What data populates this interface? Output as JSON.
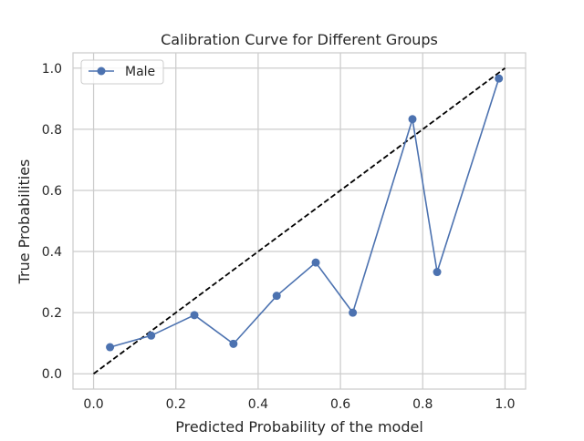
{
  "chart_data": {
    "type": "line",
    "title": "Calibration Curve for Different Groups",
    "xlabel": "Predicted Probability of the model",
    "ylabel": "True Probabilities",
    "xlim": [
      -0.05,
      1.05
    ],
    "ylim": [
      -0.05,
      1.05
    ],
    "xticks": [
      "0.0",
      "0.2",
      "0.4",
      "0.6",
      "0.8",
      "1.0"
    ],
    "yticks": [
      "0.0",
      "0.2",
      "0.4",
      "0.6",
      "0.8",
      "1.0"
    ],
    "grid": true,
    "legend_position": "upper left",
    "series": [
      {
        "name": "Male",
        "color": "#4c72b0",
        "marker": "circle",
        "x": [
          0.04,
          0.14,
          0.245,
          0.34,
          0.445,
          0.54,
          0.63,
          0.775,
          0.835,
          0.985
        ],
        "y": [
          0.087,
          0.125,
          0.192,
          0.098,
          0.255,
          0.364,
          0.2,
          0.833,
          0.333,
          0.966
        ]
      }
    ],
    "reference_line": {
      "style": "dashed",
      "color": "#000000",
      "x": [
        0,
        1
      ],
      "y": [
        0,
        1
      ]
    }
  }
}
